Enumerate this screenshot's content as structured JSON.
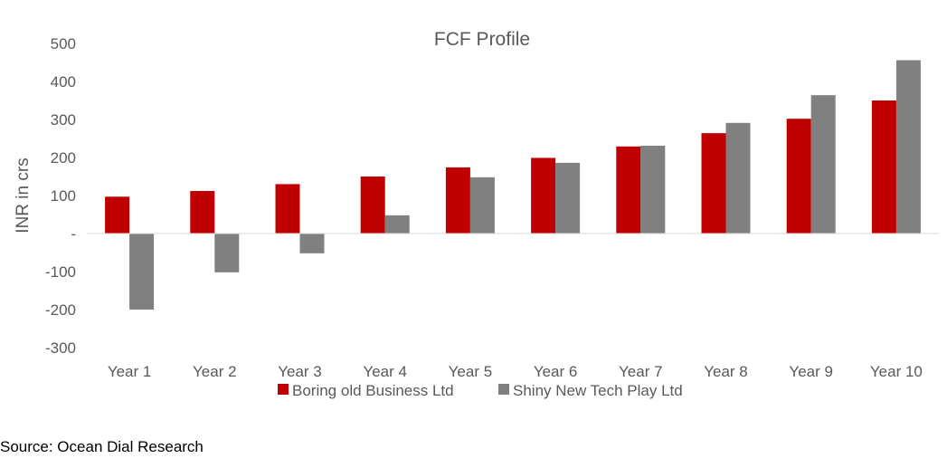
{
  "chart_data": {
    "type": "bar",
    "title": "FCF Profile",
    "xlabel": "",
    "ylabel": "INR in crs",
    "ylim": [
      -300,
      500
    ],
    "yticks": [
      500,
      400,
      300,
      200,
      100,
      0,
      -100,
      -200,
      -300
    ],
    "ytick_labels": [
      "500",
      "400",
      "300",
      "200",
      "100",
      "-",
      "-100",
      "-200",
      "-300"
    ],
    "categories": [
      "Year 1",
      "Year 2",
      "Year 3",
      "Year 4",
      "Year 5",
      "Year 6",
      "Year 7",
      "Year 8",
      "Year 9",
      "Year 10"
    ],
    "series": [
      {
        "name": "Boring old Business Ltd",
        "color": "#C00000",
        "values": [
          97,
          112,
          130,
          150,
          174,
          199,
          229,
          264,
          302,
          350
        ]
      },
      {
        "name": "Shiny New Tech Play Ltd",
        "color": "#808080",
        "values": [
          -200,
          -102,
          -52,
          48,
          148,
          186,
          231,
          291,
          364,
          456
        ]
      }
    ],
    "grid": false,
    "legend": "bottom"
  },
  "source": "Source: Ocean Dial Research"
}
